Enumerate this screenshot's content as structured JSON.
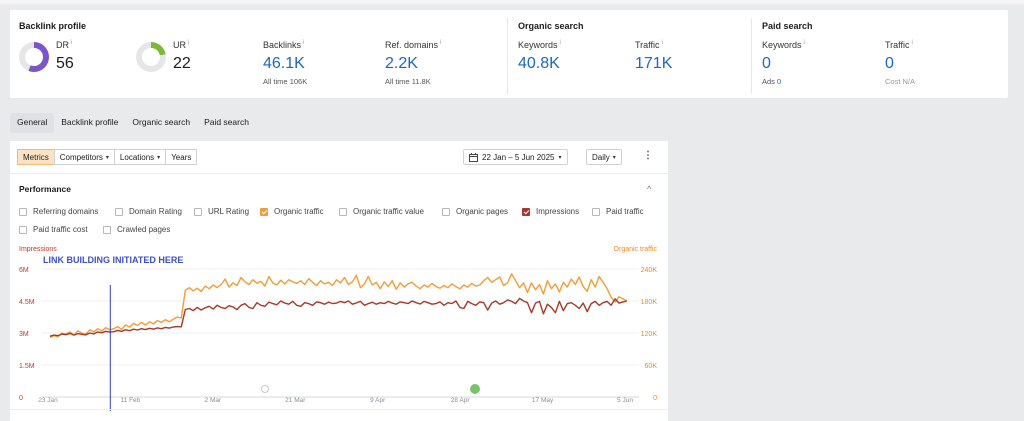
{
  "summary": {
    "backlink_profile": {
      "title": "Backlink profile",
      "dr": {
        "label": "DR",
        "value": "56",
        "info": "i"
      },
      "ur": {
        "label": "UR",
        "value": "22",
        "info": "i"
      },
      "backlinks": {
        "label": "Backlinks",
        "value": "46.1K",
        "sub_label": "All time",
        "sub_value": "106K",
        "info": "i"
      },
      "ref_domains": {
        "label": "Ref. domains",
        "value": "2.2K",
        "sub_label": "All time",
        "sub_value": "11.8K",
        "info": "i"
      }
    },
    "organic_search": {
      "title": "Organic search",
      "keywords": {
        "label": "Keywords",
        "value": "40.8K",
        "info": "i"
      },
      "traffic": {
        "label": "Traffic",
        "value": "171K",
        "info": "i"
      }
    },
    "paid_search": {
      "title": "Paid search",
      "keywords": {
        "label": "Keywords",
        "value": "0",
        "sub_label": "Ads",
        "sub_value": "0",
        "info": "i"
      },
      "traffic": {
        "label": "Traffic",
        "value": "0",
        "sub_label": "Cost",
        "sub_value": "N/A",
        "info": "i"
      }
    }
  },
  "tabs": [
    {
      "label": "General",
      "active": true
    },
    {
      "label": "Backlink profile",
      "active": false
    },
    {
      "label": "Organic search",
      "active": false
    },
    {
      "label": "Paid search",
      "active": false
    }
  ],
  "toolbar": {
    "metrics": "Metrics",
    "competitors": "Competitors",
    "locations": "Locations",
    "years": "Years",
    "date_range": "22 Jan – 5 Jun 2025",
    "granularity": "Daily",
    "more": "⋮",
    "caret": "▾",
    "calendar_icon": "calendar-icon"
  },
  "performance": {
    "title": "Performance",
    "collapse_icon": "^",
    "checkboxes": [
      {
        "label": "Referring domains",
        "checked": false,
        "color": ""
      },
      {
        "label": "Domain Rating",
        "checked": false,
        "color": ""
      },
      {
        "label": "URL Rating",
        "checked": false,
        "color": ""
      },
      {
        "label": "Organic traffic",
        "checked": true,
        "color": "#f39c38"
      },
      {
        "label": "Organic traffic value",
        "checked": false,
        "color": ""
      },
      {
        "label": "Organic pages",
        "checked": false,
        "color": ""
      },
      {
        "label": "Impressions",
        "checked": true,
        "color": "#a8392a"
      },
      {
        "label": "Paid traffic",
        "checked": false,
        "color": ""
      },
      {
        "label": "Paid traffic cost",
        "checked": false,
        "color": ""
      },
      {
        "label": "Crawled pages",
        "checked": false,
        "color": ""
      }
    ]
  },
  "chart_data": {
    "type": "line",
    "left_axis_label": "Impressions",
    "right_axis_label": "Organic traffic",
    "y_left_ticks": [
      "6M",
      "4.5M",
      "3M",
      "1.5M",
      "0"
    ],
    "y_right_ticks": [
      "240K",
      "180K",
      "120K",
      "60K",
      "0"
    ],
    "ylim_left": [
      0,
      6000000
    ],
    "ylim_right": [
      0,
      240000
    ],
    "x_ticks": [
      "23 Jan",
      "11 Feb",
      "2 Mar",
      "21 Mar",
      "9 Apr",
      "28 Apr",
      "17 May",
      "5 Jun"
    ],
    "annotation": "LINK BUILDING INITIATED HERE",
    "annotation_date": "6 Feb",
    "series": [
      {
        "name": "Organic traffic",
        "axis": "right",
        "color": "#f39c38",
        "values": [
          112000,
          115000,
          113000,
          120000,
          118000,
          122000,
          116000,
          124000,
          120000,
          118000,
          126000,
          122000,
          128000,
          124000,
          130000,
          126000,
          128000,
          132000,
          127000,
          135000,
          131000,
          138000,
          134000,
          140000,
          135000,
          141000,
          137000,
          143000,
          140000,
          145000,
          141000,
          146000,
          150000,
          148000,
          200000,
          205000,
          199000,
          204000,
          198000,
          208000,
          203000,
          210000,
          205000,
          211000,
          221000,
          206000,
          214000,
          209000,
          224000,
          216000,
          211000,
          220000,
          213000,
          217000,
          208000,
          226000,
          214000,
          210000,
          219000,
          212000,
          220000,
          216000,
          213000,
          218000,
          211000,
          222000,
          215000,
          209000,
          218000,
          212000,
          215000,
          209000,
          220000,
          214000,
          224000,
          211000,
          216000,
          228000,
          205000,
          212000,
          226000,
          210000,
          215000,
          203000,
          216000,
          207000,
          218000,
          202000,
          214000,
          206000,
          212000,
          215000,
          208000,
          203000,
          210000,
          206000,
          213000,
          207000,
          204000,
          209000,
          205000,
          212000,
          207000,
          203000,
          210000,
          206000,
          213000,
          208000,
          210000,
          218000,
          224000,
          215000,
          220000,
          225000,
          209000,
          214000,
          231000,
          218000,
          205000,
          214000,
          196000,
          214000,
          201000,
          211000,
          193000,
          218000,
          203000,
          212000,
          197000,
          215000,
          206000,
          221000,
          211000,
          225000,
          207000,
          198000,
          220000,
          206000,
          226000,
          215000,
          203000,
          187000,
          178000,
          188000,
          184000,
          180000
        ],
        "note": "approximate values read from chart"
      },
      {
        "name": "Impressions",
        "axis": "left",
        "color": "#a8392a",
        "values": [
          2850000,
          2900000,
          2880000,
          2950000,
          2920000,
          2980000,
          2900000,
          2970000,
          2940000,
          2910000,
          3000000,
          2960000,
          3050000,
          3010000,
          3080000,
          3040000,
          3060000,
          3120000,
          3080000,
          3150000,
          3110000,
          3180000,
          3140000,
          3200000,
          3160000,
          3220000,
          3180000,
          3240000,
          3200000,
          3260000,
          3230000,
          3280000,
          3300000,
          3290000,
          4100000,
          4150000,
          4050000,
          4200000,
          4080000,
          4180000,
          4250000,
          4120000,
          4300000,
          4200000,
          4150000,
          4280000,
          4220000,
          4100000,
          4300000,
          4380000,
          4200000,
          4150000,
          4420000,
          4300000,
          4250000,
          4450000,
          4380000,
          4320000,
          4500000,
          4400000,
          4350000,
          4480000,
          4300000,
          4250000,
          4420000,
          4380000,
          4300000,
          4460000,
          4420000,
          4350000,
          4450000,
          4380000,
          4400000,
          4480000,
          4420000,
          4500000,
          4350000,
          4410000,
          4480000,
          4300000,
          4380000,
          4440000,
          4350000,
          4420000,
          4380000,
          4480000,
          4400000,
          4350000,
          4460000,
          4420000,
          4380000,
          4500000,
          4420000,
          4360000,
          4480000,
          4420000,
          4350000,
          4380000,
          4460000,
          4300000,
          4420000,
          4380000,
          4500000,
          4200000,
          4150000,
          4480000,
          4380000,
          4300000,
          4460000,
          4420000,
          4080000,
          4400000,
          4500000,
          4350000,
          4420000,
          4550000,
          4480000,
          4380000,
          4620000,
          4500000,
          4420000,
          3950000,
          4400000,
          4480000,
          3900000,
          4350000,
          4200000,
          3950000,
          4480000,
          4050000,
          4380000,
          4420000,
          4300000,
          4150000,
          4400000,
          4000000,
          4380000,
          4480000,
          4300000,
          4420000,
          4480000,
          4300000,
          4600000,
          4400000,
          4460000,
          4500000
        ],
        "note": "approximate values read from chart"
      }
    ]
  }
}
